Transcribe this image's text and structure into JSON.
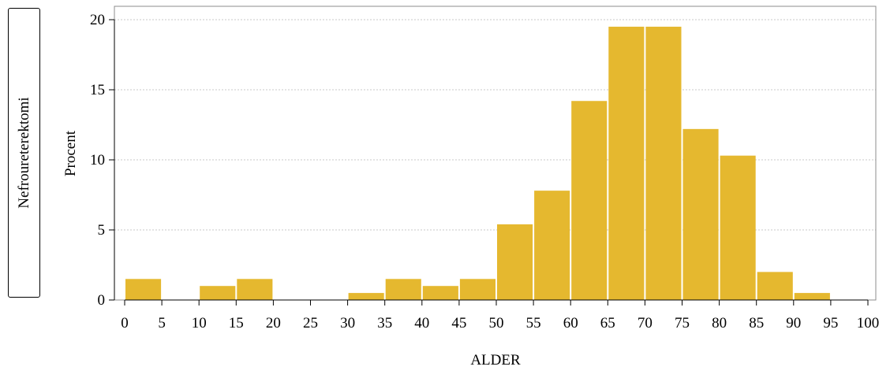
{
  "panel_label": "Nefroureterektomi",
  "chart_data": {
    "type": "bar",
    "title": "",
    "xlabel": "ALDER",
    "ylabel": "Procent",
    "bin_width": 5,
    "xlim": [
      0,
      100
    ],
    "ylim": [
      0,
      20
    ],
    "x_ticks": [
      0,
      5,
      10,
      15,
      20,
      25,
      30,
      35,
      40,
      45,
      50,
      55,
      60,
      65,
      70,
      75,
      80,
      85,
      90,
      95,
      100
    ],
    "y_ticks": [
      0,
      5,
      10,
      15,
      20
    ],
    "bins": [
      {
        "start": 0,
        "end": 5,
        "value": 1.5
      },
      {
        "start": 5,
        "end": 10,
        "value": 0
      },
      {
        "start": 10,
        "end": 15,
        "value": 1.0
      },
      {
        "start": 15,
        "end": 20,
        "value": 1.5
      },
      {
        "start": 20,
        "end": 25,
        "value": 0
      },
      {
        "start": 25,
        "end": 30,
        "value": 0
      },
      {
        "start": 30,
        "end": 35,
        "value": 0.5
      },
      {
        "start": 35,
        "end": 40,
        "value": 1.5
      },
      {
        "start": 40,
        "end": 45,
        "value": 1.0
      },
      {
        "start": 45,
        "end": 50,
        "value": 1.5
      },
      {
        "start": 50,
        "end": 55,
        "value": 5.4
      },
      {
        "start": 55,
        "end": 60,
        "value": 7.8
      },
      {
        "start": 60,
        "end": 65,
        "value": 14.2
      },
      {
        "start": 65,
        "end": 70,
        "value": 19.5
      },
      {
        "start": 70,
        "end": 75,
        "value": 19.5
      },
      {
        "start": 75,
        "end": 80,
        "value": 12.2
      },
      {
        "start": 80,
        "end": 85,
        "value": 10.3
      },
      {
        "start": 85,
        "end": 90,
        "value": 2.0
      },
      {
        "start": 90,
        "end": 95,
        "value": 0.5
      },
      {
        "start": 95,
        "end": 100,
        "value": 0
      }
    ],
    "bar_color": "#e5b82f",
    "grid": true,
    "grid_color": "#c8c8c8",
    "legend": false
  }
}
